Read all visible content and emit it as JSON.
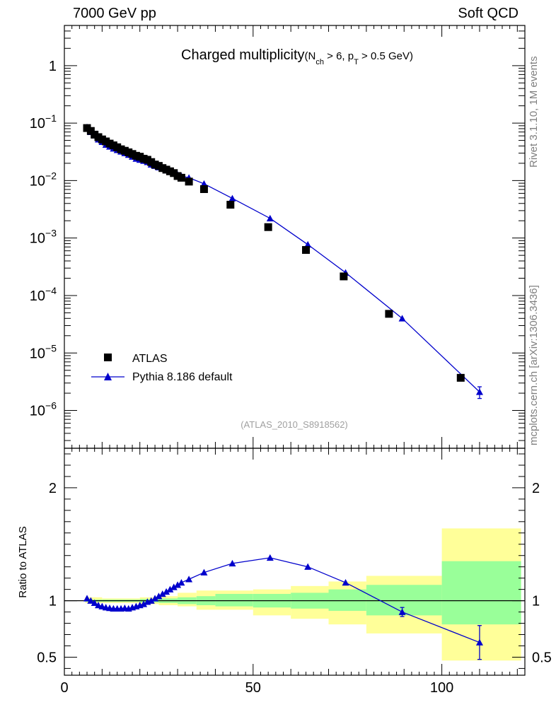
{
  "header": {
    "left": "7000 GeV pp",
    "right": "Soft QCD"
  },
  "side_labels": {
    "top": "Rivet 3.1.10,  1M events",
    "bottom": "mcplots.cern.ch [arXiv:1306.3436]"
  },
  "colors": {
    "data": "#000000",
    "mc": "#0000cc",
    "band_inner": "#99ff99",
    "band_outer": "#ffff99"
  },
  "chart_data": [
    {
      "type": "scatter",
      "title_main": "Charged multiplicity",
      "title_sub": "(N",
      "title_sub_1": "ch",
      "title_sub_2": " > 6, p",
      "title_sub_3": "T",
      "title_sub_4": " > 0.5 GeV)",
      "analysis_label": "(ATLAS_2010_S8918562)",
      "yscale": "log",
      "xlim": [
        0,
        122
      ],
      "ylim": [
        2.2e-07,
        5
      ],
      "y_ticks": [
        {
          "value": 1,
          "base": "1",
          "exp": ""
        },
        {
          "value": 0.1,
          "base": "10",
          "exp": "−1"
        },
        {
          "value": 0.01,
          "base": "10",
          "exp": "−2"
        },
        {
          "value": 0.001,
          "base": "10",
          "exp": "−3"
        },
        {
          "value": 0.0001,
          "base": "10",
          "exp": "−4"
        },
        {
          "value": 1e-05,
          "base": "10",
          "exp": "−5"
        },
        {
          "value": 1e-06,
          "base": "10",
          "exp": "−6"
        }
      ],
      "legend": {
        "placement": "bottom-left",
        "entries": [
          {
            "label": "ATLAS",
            "marker": "square"
          },
          {
            "label": "Pythia 8.186 default",
            "marker": "triangle"
          }
        ]
      },
      "series": [
        {
          "name": "ATLAS",
          "x": [
            6,
            7,
            8,
            9,
            10,
            11,
            12,
            13,
            14,
            15,
            16,
            17,
            18,
            19,
            20,
            21,
            22,
            23,
            24,
            25,
            26,
            27,
            28,
            29,
            30,
            31,
            33,
            37,
            44,
            54,
            64,
            74,
            86,
            105
          ],
          "y": [
            0.082,
            0.073,
            0.063,
            0.057,
            0.052,
            0.048,
            0.044,
            0.041,
            0.038,
            0.035,
            0.033,
            0.031,
            0.029,
            0.027,
            0.026,
            0.024,
            0.023,
            0.021,
            0.019,
            0.018,
            0.0165,
            0.0155,
            0.0145,
            0.0135,
            0.012,
            0.0112,
            0.0096,
            0.0071,
            0.0038,
            0.00155,
            0.00062,
            0.000215,
            4.8e-05,
            3.7e-06
          ]
        },
        {
          "name": "Pythia 8.186 default",
          "x": [
            6,
            7,
            8,
            9,
            10,
            11,
            12,
            13,
            14,
            15,
            16,
            17,
            18,
            19,
            20,
            21,
            22,
            23,
            24,
            25,
            26,
            27,
            28,
            29,
            30,
            31,
            33,
            37,
            44.5,
            54.5,
            64.5,
            74.5,
            89.5,
            110
          ],
          "y": [
            0.085,
            0.07,
            0.061,
            0.052,
            0.047,
            0.042,
            0.039,
            0.036,
            0.034,
            0.032,
            0.03,
            0.028,
            0.026,
            0.024,
            0.023,
            0.022,
            0.021,
            0.019,
            0.018,
            0.017,
            0.016,
            0.015,
            0.0145,
            0.0135,
            0.0127,
            0.012,
            0.0112,
            0.0088,
            0.0049,
            0.0022,
            0.00077,
            0.00025,
            4e-05,
            2.1e-06
          ],
          "y_err_rel_last": 0.23
        }
      ]
    },
    {
      "type": "line",
      "ylabel": "Ratio to ATLAS",
      "xlim": [
        0,
        122
      ],
      "ylim": [
        0.34,
        2.35
      ],
      "y_ticks": [
        {
          "value": 0.5,
          "label": "0.5"
        },
        {
          "value": 1,
          "label": "1"
        },
        {
          "value": 2,
          "label": "2"
        }
      ],
      "x_ticks": [
        {
          "value": 0,
          "label": "0"
        },
        {
          "value": 50,
          "label": "50"
        },
        {
          "value": 100,
          "label": "100"
        }
      ],
      "uncertainty_bands": [
        {
          "x0": 5.5,
          "x1": 10,
          "inner": [
            0.99,
            1.01
          ],
          "outer": [
            0.98,
            1.03
          ]
        },
        {
          "x0": 10,
          "x1": 20,
          "inner": [
            0.99,
            1.01
          ],
          "outer": [
            0.98,
            1.02
          ]
        },
        {
          "x0": 20,
          "x1": 25,
          "inner": [
            0.985,
            1.015
          ],
          "outer": [
            0.97,
            1.03
          ]
        },
        {
          "x0": 25,
          "x1": 30,
          "inner": [
            0.98,
            1.02
          ],
          "outer": [
            0.96,
            1.04
          ]
        },
        {
          "x0": 30,
          "x1": 35,
          "inner": [
            0.97,
            1.03
          ],
          "outer": [
            0.95,
            1.07
          ]
        },
        {
          "x0": 35,
          "x1": 40,
          "inner": [
            0.96,
            1.04
          ],
          "outer": [
            0.92,
            1.09
          ]
        },
        {
          "x0": 40,
          "x1": 50,
          "inner": [
            0.95,
            1.06
          ],
          "outer": [
            0.92,
            1.09
          ]
        },
        {
          "x0": 50,
          "x1": 60,
          "inner": [
            0.94,
            1.06
          ],
          "outer": [
            0.87,
            1.1
          ]
        },
        {
          "x0": 60,
          "x1": 70,
          "inner": [
            0.93,
            1.07
          ],
          "outer": [
            0.84,
            1.13
          ]
        },
        {
          "x0": 70,
          "x1": 80,
          "inner": [
            0.91,
            1.1
          ],
          "outer": [
            0.79,
            1.17
          ]
        },
        {
          "x0": 80,
          "x1": 100,
          "inner": [
            0.87,
            1.14
          ],
          "outer": [
            0.71,
            1.22
          ]
        },
        {
          "x0": 100,
          "x1": 121,
          "inner": [
            0.79,
            1.35
          ],
          "outer": [
            0.47,
            1.64
          ]
        }
      ],
      "series": [
        {
          "name": "Pythia 8.186 default",
          "x": [
            6,
            7,
            8,
            9,
            10,
            11,
            12,
            13,
            14,
            15,
            16,
            17,
            18,
            19,
            20,
            21,
            22,
            23,
            24,
            25,
            26,
            27,
            28,
            29,
            30,
            31,
            33,
            37,
            44.5,
            54.5,
            64.5,
            74.5,
            89.5,
            110
          ],
          "y": [
            1.02,
            1.0,
            0.98,
            0.96,
            0.95,
            0.94,
            0.935,
            0.93,
            0.93,
            0.93,
            0.935,
            0.93,
            0.94,
            0.95,
            0.96,
            0.97,
            0.99,
            1.0,
            1.02,
            1.04,
            1.06,
            1.08,
            1.1,
            1.12,
            1.14,
            1.16,
            1.19,
            1.25,
            1.33,
            1.38,
            1.3,
            1.16,
            0.9,
            0.63
          ],
          "y_err": [
            0,
            0,
            0,
            0,
            0,
            0,
            0,
            0,
            0,
            0,
            0,
            0,
            0,
            0,
            0,
            0,
            0,
            0,
            0,
            0,
            0,
            0,
            0,
            0,
            0,
            0,
            0,
            0,
            0,
            0,
            0,
            0,
            0.04,
            0.15
          ]
        }
      ]
    }
  ]
}
